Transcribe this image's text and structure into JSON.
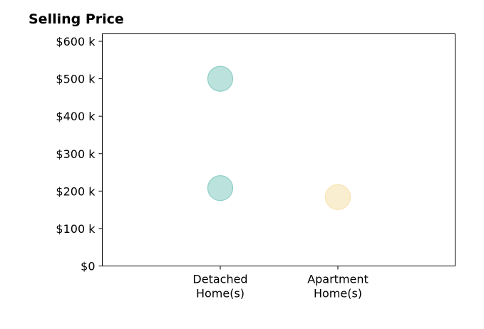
{
  "chart_data": {
    "type": "scatter",
    "title": "Selling Price",
    "xlabel": "",
    "ylabel": "",
    "categories": [
      [
        "Detached",
        "Home(s)"
      ],
      [
        "Apartment",
        "Home(s)"
      ]
    ],
    "ylim": [
      0,
      620000
    ],
    "yticks": [
      0,
      100000,
      200000,
      300000,
      400000,
      500000,
      600000
    ],
    "ytick_labels": [
      "$0",
      "$100 k",
      "$200 k",
      "$300 k",
      "$400 k",
      "$500 k",
      "$600 k"
    ],
    "grid": false,
    "series": [
      {
        "color": "#8ecfc6",
        "points": [
          {
            "x": "Detached Home(s)",
            "y": 500000
          },
          {
            "x": "Detached Home(s)",
            "y": 208000
          }
        ]
      },
      {
        "color": "#f7e2b0",
        "points": [
          {
            "x": "Apartment Home(s)",
            "y": 184000
          }
        ]
      }
    ]
  }
}
